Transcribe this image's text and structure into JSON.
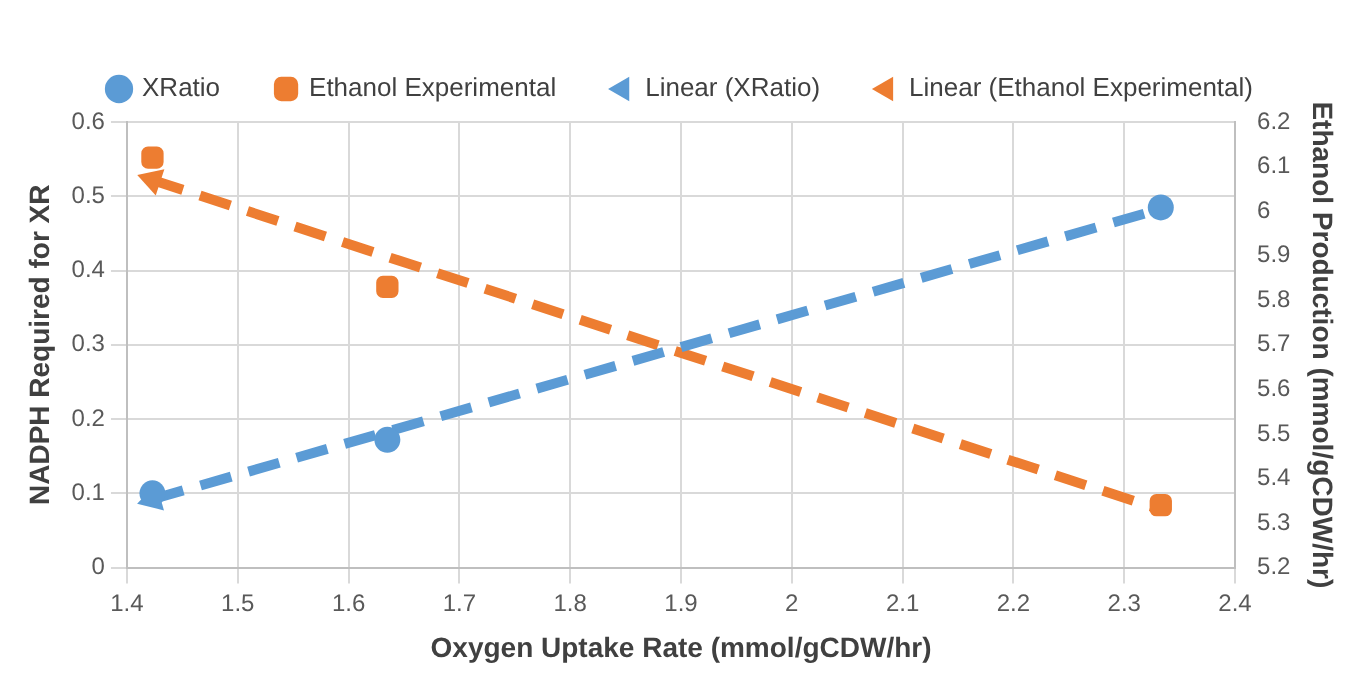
{
  "chart_data": {
    "type": "scatter",
    "xlabel": "Oxygen Uptake Rate (mmol/gCDW/hr)",
    "ylabel": "NADPH Required for XR",
    "y2label": "Ethanol Production (mmol/gCDW/hr)",
    "xlim": [
      1.4,
      2.4
    ],
    "xticks": [
      1.4,
      1.5,
      1.6,
      1.7,
      1.8,
      1.9,
      {
        "value": 2,
        "label": "2"
      },
      2.1,
      2.2,
      2.3,
      2.4
    ],
    "ylim": [
      0,
      0.6
    ],
    "yticks": [
      {
        "value": 0,
        "label": "0"
      },
      0.1,
      0.2,
      0.3,
      0.4,
      0.5,
      0.6
    ],
    "y2lim": [
      5.2,
      6.2
    ],
    "y2ticks": [
      5.2,
      5.3,
      5.4,
      5.5,
      5.6,
      5.7,
      5.8,
      5.9,
      {
        "value": 6,
        "label": "6"
      },
      6.1,
      6.2
    ],
    "grid": true,
    "legend": "top",
    "series": [
      {
        "name": "XRatio",
        "marker": "circle",
        "color": "#5b9bd5",
        "x": [
          1.423,
          1.635,
          2.333
        ],
        "values": [
          0.1,
          0.172,
          0.485
        ]
      },
      {
        "name": "Ethanol Experimental",
        "marker": "square",
        "color": "#ed7d31",
        "axis": "y2",
        "x": [
          1.423,
          1.635,
          2.333
        ],
        "values": [
          6.12,
          5.83,
          5.34
        ]
      },
      {
        "name": "Linear (XRatio)",
        "type": "line",
        "marker": "triangle",
        "line_style": "dashed",
        "color": "#5b9bd5",
        "x": [
          1.423,
          2.333
        ],
        "values": [
          0.092,
          0.483
        ]
      },
      {
        "name": "Linear (Ethanol Experimental)",
        "type": "line",
        "marker": "triangle",
        "line_style": "dashed",
        "color": "#ed7d31",
        "axis": "y2",
        "x": [
          1.423,
          2.333
        ],
        "values": [
          6.07,
          5.33
        ]
      }
    ]
  }
}
